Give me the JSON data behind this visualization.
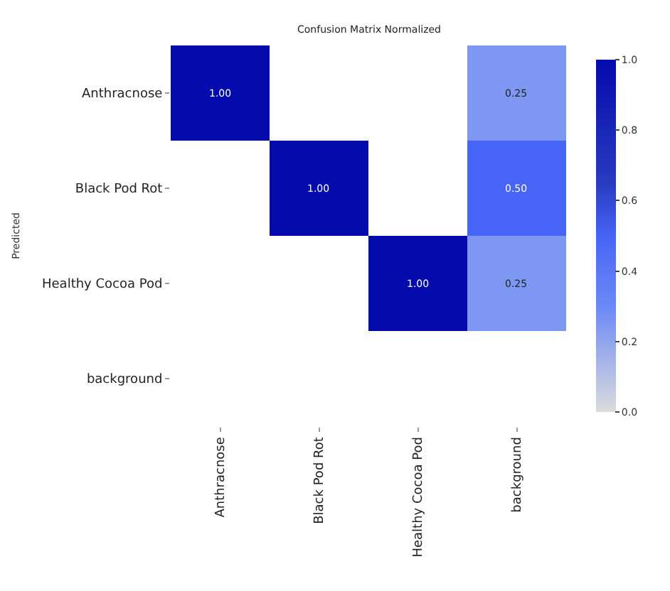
{
  "chart_data": {
    "type": "heatmap",
    "title": "Confusion Matrix Normalized",
    "ylabel": "Predicted",
    "categories": [
      "Anthracnose",
      "Black Pod Rot",
      "Healthy Cocoa Pod",
      "background"
    ],
    "y_categories": [
      "Anthracnose",
      "Black Pod Rot",
      "Healthy Cocoa Pod",
      "background"
    ],
    "cells": [
      [
        1,
        null,
        null,
        0.25
      ],
      [
        null,
        1,
        null,
        0.5
      ],
      [
        null,
        null,
        1,
        0.25
      ],
      [
        null,
        null,
        null,
        null
      ]
    ],
    "cell_labels": [
      [
        "1.00",
        null,
        null,
        "0.25"
      ],
      [
        null,
        "1.00",
        null,
        "0.50"
      ],
      [
        null,
        null,
        "1.00",
        "0.25"
      ],
      [
        null,
        null,
        null,
        null
      ]
    ],
    "clim": [
      0,
      1
    ],
    "cticks": [
      {
        "value": 0,
        "label": "0.0"
      },
      {
        "value": 0.2,
        "label": "0.2"
      },
      {
        "value": 0.4,
        "label": "0.4"
      },
      {
        "value": 0.6,
        "label": "0.6"
      },
      {
        "value": 0.8,
        "label": "0.8"
      },
      {
        "value": 1,
        "label": "1.0"
      }
    ]
  }
}
